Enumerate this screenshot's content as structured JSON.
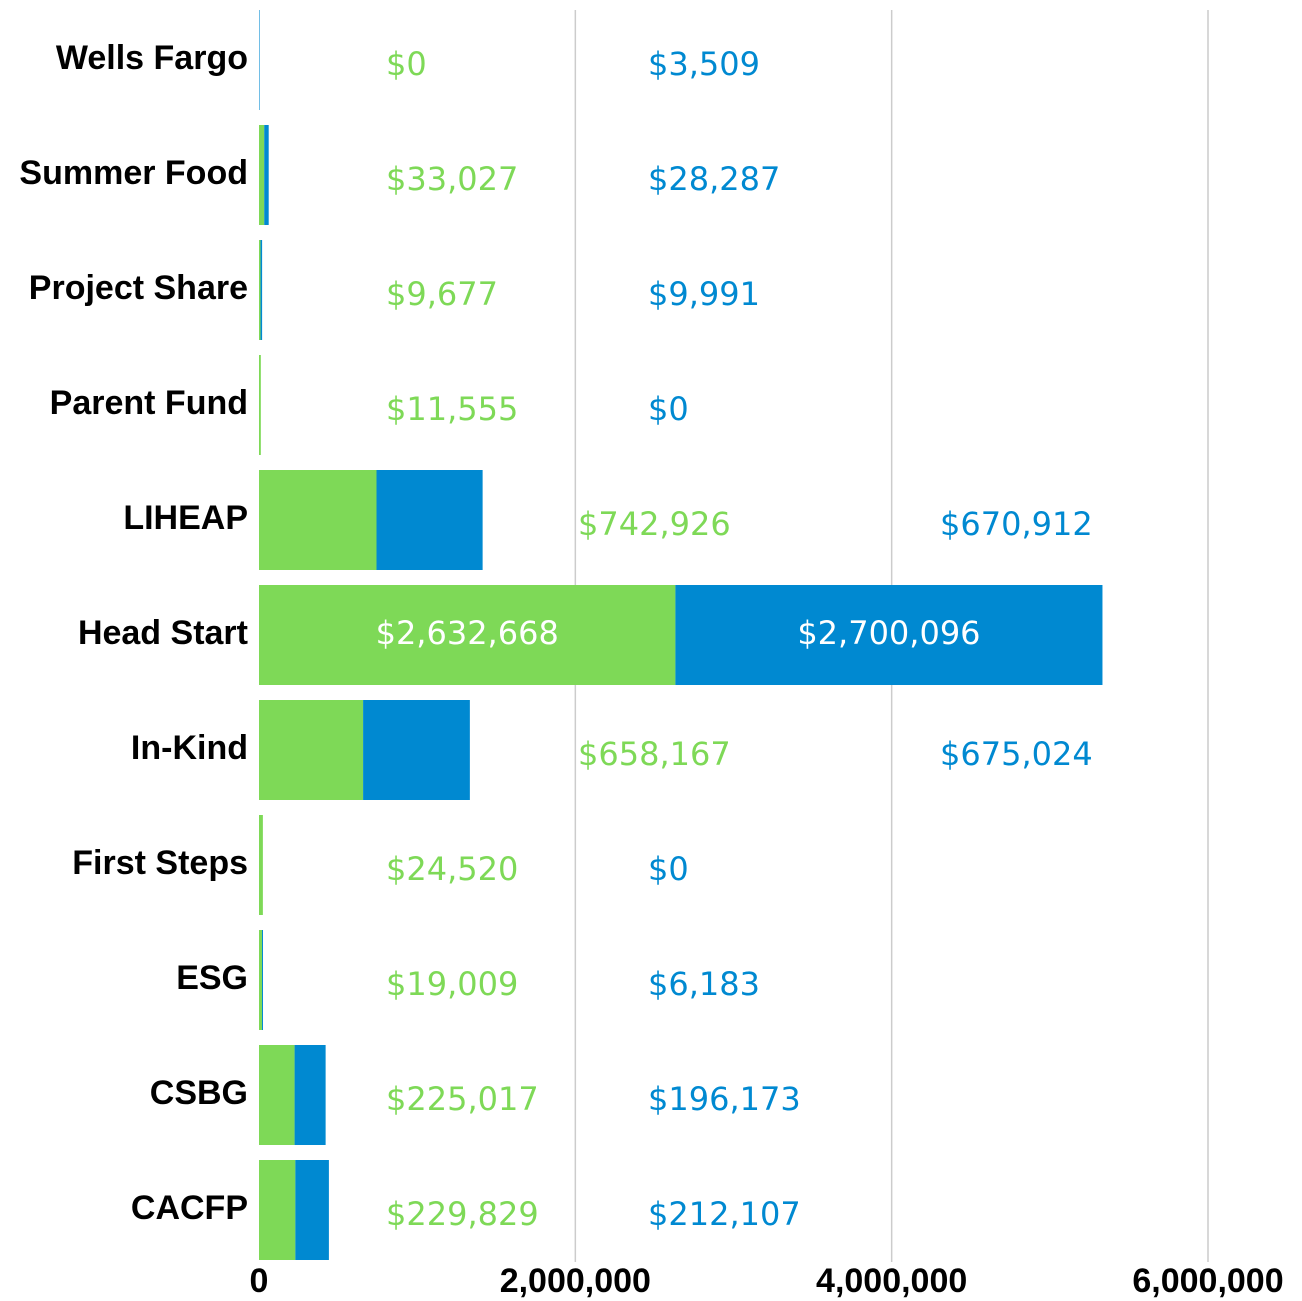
{
  "chart_data": {
    "type": "stacked-barh",
    "categories": [
      "Wells Fargo",
      "Summer Food",
      "Project Share",
      "Parent Fund",
      "LIHEAP",
      "Head Start",
      "In-Kind",
      "First Steps",
      "ESG",
      "CSBG",
      "CACFP"
    ],
    "series": [
      {
        "color": "#7ed957",
        "values": [
          0,
          33027,
          9677,
          11555,
          742926,
          2632668,
          658167,
          24520,
          19009,
          225017,
          229829
        ],
        "value_labels": [
          "$0",
          "$33,027",
          "$9,677",
          "$11,555",
          "$742,926",
          "$2,632,668",
          "$658,167",
          "$24,520",
          "$19,009",
          "$225,017",
          "$229,829"
        ]
      },
      {
        "color": "#0089d1",
        "values": [
          3509,
          28287,
          9991,
          0,
          670912,
          2700096,
          675024,
          0,
          6183,
          196173,
          212107
        ],
        "value_labels": [
          "$3,509",
          "$28,287",
          "$9,991",
          "$0",
          "$670,912",
          "$2,700,096",
          "$675,024",
          "$0",
          "$6,183",
          "$196,173",
          "$212,107"
        ]
      }
    ],
    "xlim": [
      0,
      6000000
    ],
    "xticks": [
      0,
      {
        "value": 2000000,
        "label": "2,000,000"
      },
      {
        "value": 4000000,
        "label": "4,000,000"
      },
      {
        "value": 6000000,
        "label": "6,000,000"
      }
    ],
    "grid": true
  }
}
